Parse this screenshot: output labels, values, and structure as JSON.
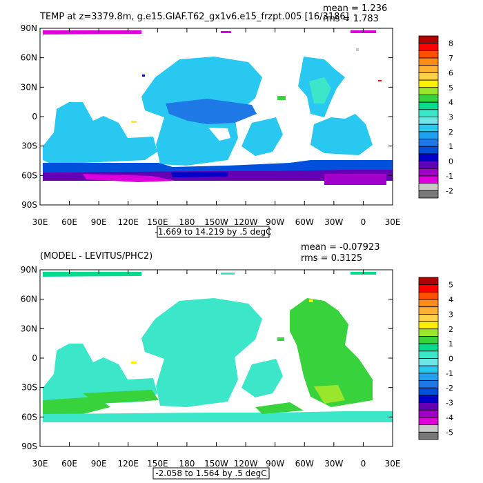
{
  "chart_data": [
    {
      "type": "heatmap",
      "title": "TEMP at z=3379.8m, g.e15.GIAF.T62_gx1v6.e15_frzpt.005 [16/3186]",
      "stats": {
        "mean": "mean = 1.236",
        "rms": "rms = 1.783"
      },
      "range_label": "-1.669 to 14.219 by .5 degC",
      "x_ticks": [
        "30E",
        "60E",
        "90E",
        "120E",
        "150E",
        "180",
        "150W",
        "120W",
        "90W",
        "60W",
        "30W",
        "0",
        "30E"
      ],
      "y_ticks": [
        "90N",
        "60N",
        "30N",
        "0",
        "30S",
        "60S",
        "90S"
      ],
      "colorbar": {
        "labels": [
          "8",
          "7",
          "6",
          "5",
          "4",
          "3",
          "2",
          "1",
          "0",
          "-1",
          "-2"
        ],
        "colors": [
          "#b40000",
          "#ff0000",
          "#ff5000",
          "#ff8c1a",
          "#ffb030",
          "#ffd24a",
          "#fff000",
          "#9ae62c",
          "#37d23c",
          "#00dc8c",
          "#3ce6c8",
          "#6ee6e6",
          "#28c8f0",
          "#20a0f0",
          "#1e78e6",
          "#0050dc",
          "#0000c8",
          "#6400b4",
          "#a000c8",
          "#dc00dc",
          "#c8c8c8",
          "#787878"
        ]
      }
    },
    {
      "type": "heatmap",
      "title": "(MODEL - LEVITUS/PHC2)",
      "stats": {
        "mean": "mean = -0.07923",
        "rms": "rms = 0.3125"
      },
      "range_label": "-2.058 to 1.564 by .5 degC",
      "x_ticks": [
        "30E",
        "60E",
        "90E",
        "120E",
        "150E",
        "180",
        "150W",
        "120W",
        "90W",
        "60W",
        "30W",
        "0",
        "30E"
      ],
      "y_ticks": [
        "90N",
        "60N",
        "30N",
        "0",
        "30S",
        "60S",
        "90S"
      ],
      "colorbar": {
        "labels": [
          "5",
          "4",
          "3",
          "2",
          "1",
          "0",
          "-1",
          "-2",
          "-3",
          "-4",
          "-5"
        ],
        "colors": [
          "#b40000",
          "#ff0000",
          "#ff5000",
          "#ff8c1a",
          "#ffb030",
          "#ffd24a",
          "#fff000",
          "#9ae62c",
          "#37d23c",
          "#00dc8c",
          "#3ce6c8",
          "#6ee6e6",
          "#28c8f0",
          "#20a0f0",
          "#1e78e6",
          "#0050dc",
          "#0000c8",
          "#6400b4",
          "#a000c8",
          "#dc00dc",
          "#c8c8c8",
          "#787878"
        ]
      }
    }
  ]
}
